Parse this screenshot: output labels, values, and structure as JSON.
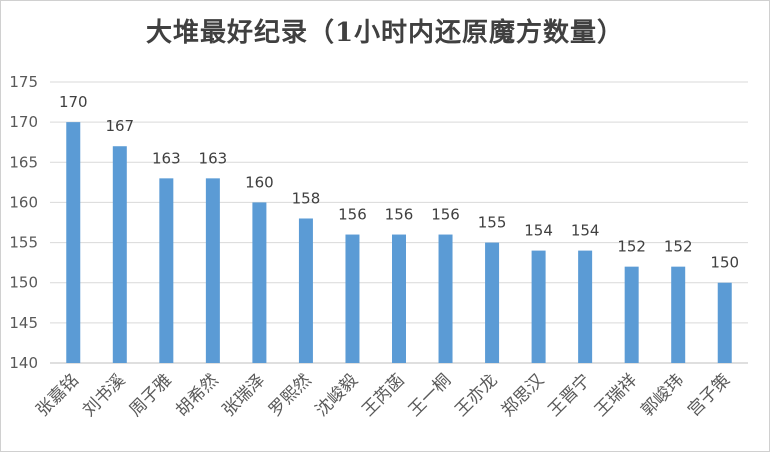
{
  "chart_data": {
    "type": "bar",
    "title": "大堆最好纪录（1小时内还原魔方数量）",
    "xlabel": "",
    "ylabel": "",
    "ylim": [
      140,
      175
    ],
    "yticks": [
      140,
      145,
      150,
      155,
      160,
      165,
      170,
      175
    ],
    "grid": true,
    "legend": "none",
    "bar_color": "#5b9bd5",
    "categories": [
      "张嘉铭",
      "刘书溪",
      "周子雅",
      "胡希然",
      "张瑞泽",
      "罗熙然",
      "沈峻毅",
      "王芮菡",
      "王一桐",
      "王亦龙",
      "郑思汉",
      "王晋宁",
      "王瑞祥",
      "郭峻玮",
      "宫子策"
    ],
    "values": [
      170,
      167,
      163,
      163,
      160,
      158,
      156,
      156,
      156,
      155,
      154,
      154,
      152,
      152,
      150
    ]
  }
}
